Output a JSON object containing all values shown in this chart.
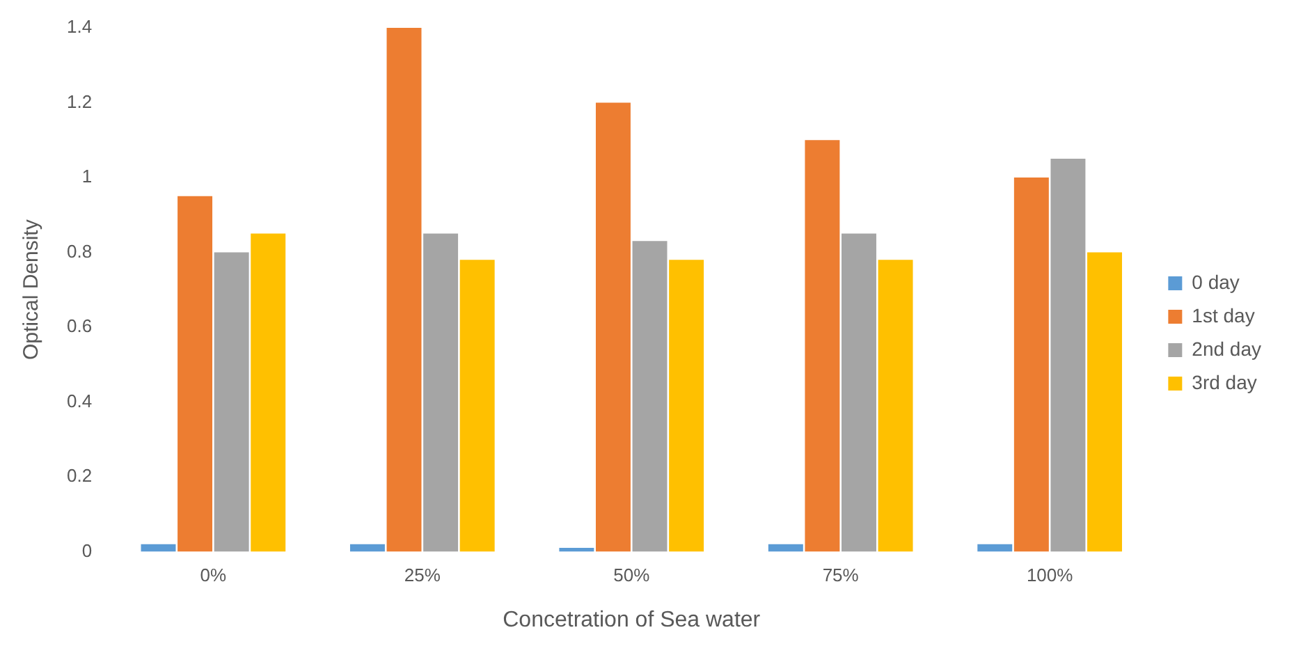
{
  "chart_data": {
    "type": "bar",
    "xlabel": "Concetration of Sea water",
    "ylabel": "Optical Density",
    "categories": [
      "0%",
      "25%",
      "50%",
      "75%",
      "100%"
    ],
    "series": [
      {
        "name": "0 day",
        "color": "#5b9bd5",
        "values": [
          0.02,
          0.02,
          0.01,
          0.02,
          0.02
        ]
      },
      {
        "name": "1st day",
        "color": "#ed7d31",
        "values": [
          0.95,
          1.4,
          1.2,
          1.1,
          1.0
        ]
      },
      {
        "name": "2nd day",
        "color": "#a5a5a5",
        "values": [
          0.8,
          0.85,
          0.83,
          0.85,
          1.05
        ]
      },
      {
        "name": "3rd day",
        "color": "#ffc000",
        "values": [
          0.85,
          0.78,
          0.78,
          0.78,
          0.8
        ]
      }
    ],
    "ylim": [
      0,
      1.4
    ],
    "yticks": [
      0,
      0.2,
      0.4,
      0.6,
      0.8,
      {
        "value": 1,
        "label": "1"
      },
      1.2,
      1.4
    ],
    "grid": false,
    "legend": "right"
  }
}
